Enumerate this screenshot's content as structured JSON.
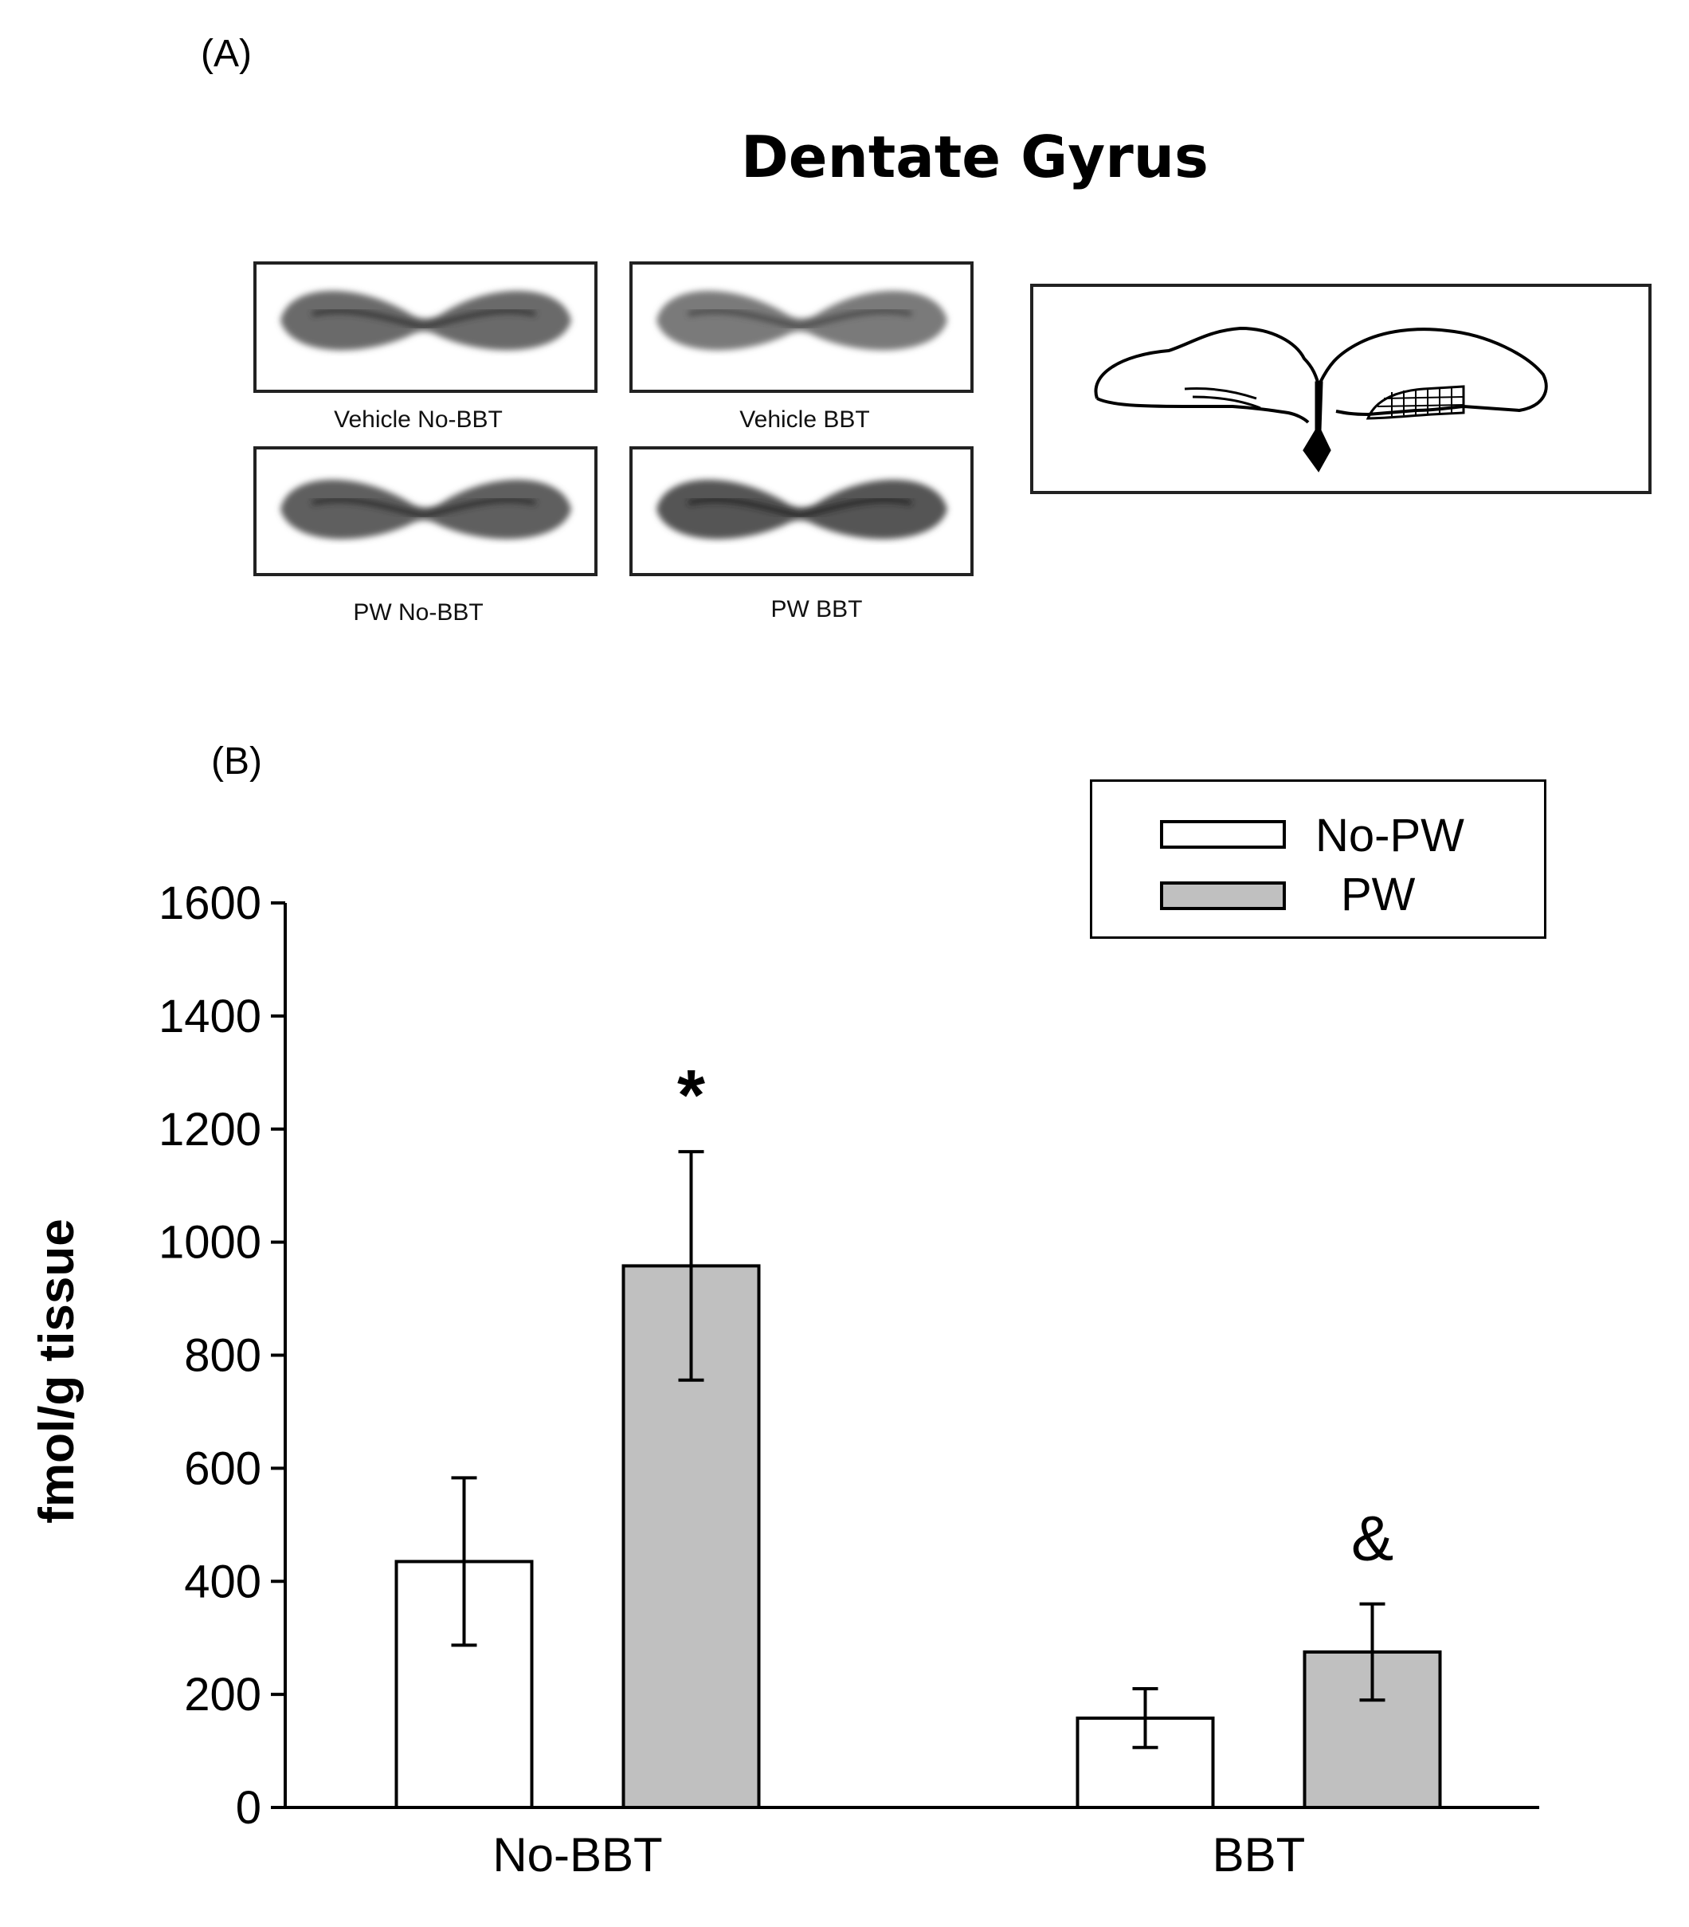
{
  "panel_a": {
    "label": "(A)",
    "title": "Dentate Gyrus",
    "images": [
      {
        "caption": "Vehicle No-BBT"
      },
      {
        "caption": "Vehicle  BBT"
      },
      {
        "caption": "PW  No-BBT"
      },
      {
        "caption": "PW BBT"
      }
    ]
  },
  "panel_b": {
    "label": "(B)"
  },
  "colors": {
    "no_pw_fill": "#ffffff",
    "pw_fill": "#c0c0c0",
    "stroke": "#000000"
  },
  "chart_data": {
    "type": "bar",
    "categories": [
      "No-BBT",
      "BBT"
    ],
    "series": [
      {
        "name": "No-PW",
        "values": [
          435,
          158
        ],
        "errors": [
          148,
          52
        ]
      },
      {
        "name": "PW",
        "values": [
          958,
          275
        ],
        "errors": [
          202,
          85
        ]
      }
    ],
    "annotations": [
      {
        "text": "*",
        "category": "No-BBT",
        "series": "PW"
      },
      {
        "text": "&",
        "category": "BBT",
        "series": "PW"
      }
    ],
    "xlabel": "",
    "ylabel": "fmol/g tissue",
    "ylim": [
      0,
      1600
    ],
    "yticks": [
      0,
      200,
      400,
      600,
      800,
      1000,
      1200,
      1400,
      1600
    ],
    "grid": false,
    "legend": "top-right"
  }
}
